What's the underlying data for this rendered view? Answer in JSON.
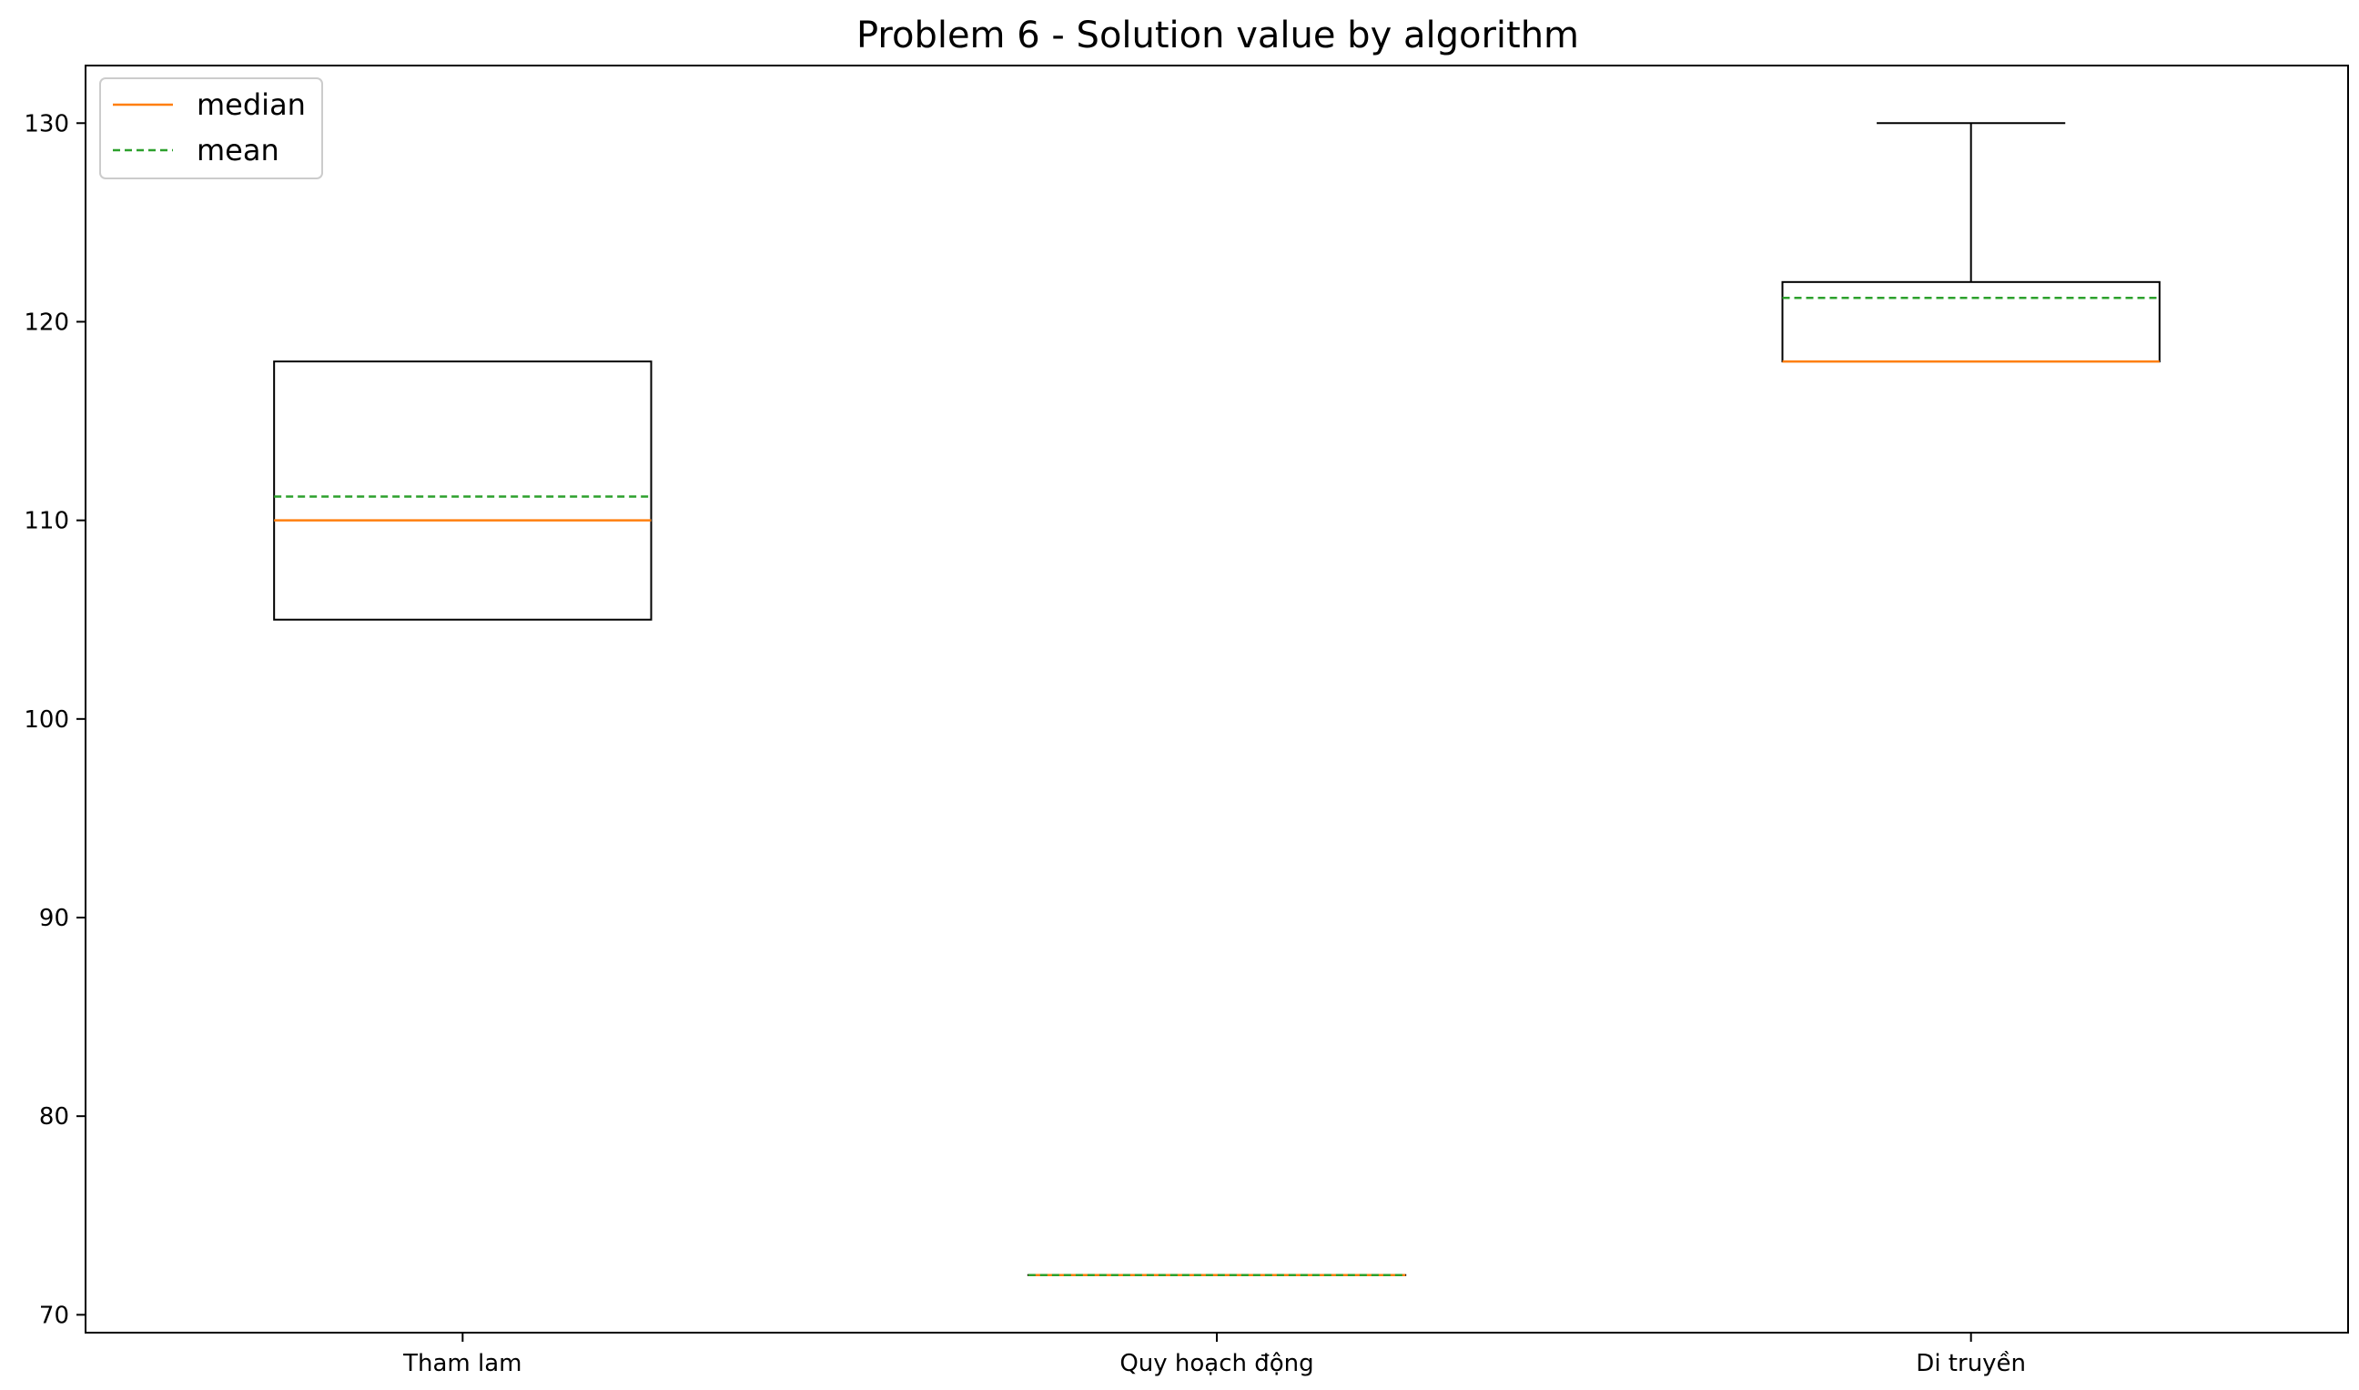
{
  "chart_data": {
    "type": "box",
    "title": "Problem 6 - Solution value by algorithm",
    "xlabel": "",
    "ylabel": "",
    "ylim": [
      69.1,
      132.9
    ],
    "yticks": [
      70,
      80,
      90,
      100,
      110,
      120,
      130
    ],
    "categories": [
      "Tham lam",
      "Quy hoạch động",
      "Di truyền"
    ],
    "boxes": [
      {
        "q1": 105,
        "median": 110,
        "mean": 111.2,
        "q3": 118,
        "whisker_low": 105,
        "whisker_high": 118
      },
      {
        "q1": 72,
        "median": 72,
        "mean": 72,
        "q3": 72,
        "whisker_low": 72,
        "whisker_high": 72
      },
      {
        "q1": 118,
        "median": 118,
        "mean": 121.2,
        "q3": 122,
        "whisker_low": 118,
        "whisker_high": 130
      }
    ],
    "legend": {
      "position": "upper-left",
      "entries": [
        {
          "label": "median",
          "color": "#ff7f0e",
          "style": "solid"
        },
        {
          "label": "mean",
          "color": "#2ca02c",
          "style": "dashed"
        }
      ]
    },
    "grid": false,
    "colors": {
      "box": "#000000",
      "median": "#ff7f0e",
      "mean": "#2ca02c"
    }
  }
}
